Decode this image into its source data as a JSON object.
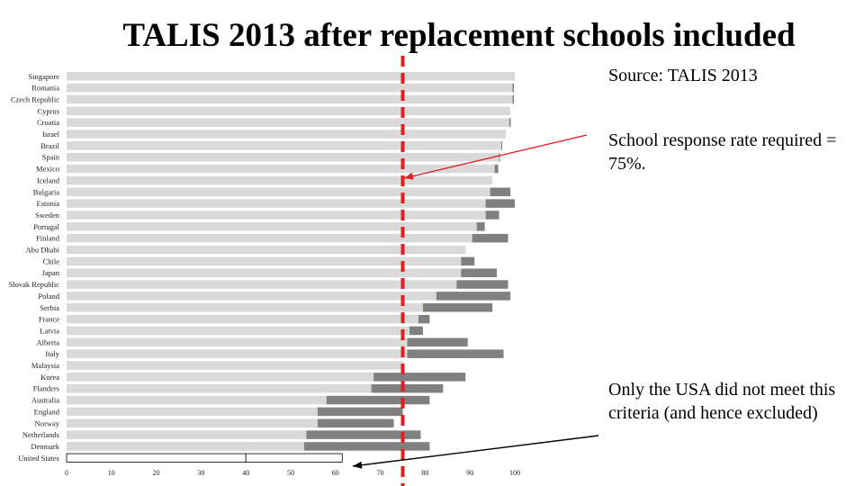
{
  "title": "TALIS 2013 after replacement schools included",
  "notes": {
    "source": "Source: TALIS 2013",
    "required": "School response rate required = 75%.",
    "usa": "Only the USA did not meet this criteria (and hence excluded)"
  },
  "colors": {
    "before_replacement": "#d9d9d9",
    "after_replacement": "#808080",
    "threshold": "#e02020",
    "arrow": "#e02020",
    "usa_arrow": "#000000"
  },
  "chart_data": {
    "type": "bar",
    "orientation": "horizontal",
    "stacked": true,
    "categories": [
      "Singapore",
      "Romania",
      "Czech Republic",
      "Cyprus",
      "Croatia",
      "Israel",
      "Brazil",
      "Spain",
      "Mexico",
      "Iceland",
      "Bulgaria",
      "Estonia",
      "Sweden",
      "Portugal",
      "Finland",
      "Abu Dhabi",
      "Chile",
      "Japan",
      "Slovak Republic",
      "Poland",
      "Serbia",
      "France",
      "Latvia",
      "Alberta",
      "Italy",
      "Malaysia",
      "Korea",
      "Flanders",
      "Australia",
      "England",
      "Norway",
      "Netherlands",
      "Denmark",
      "United States"
    ],
    "series": [
      {
        "values": [
          100,
          99.5,
          99.5,
          99,
          98.8,
          98,
          97,
          96.5,
          95.5,
          95,
          94.5,
          93.5,
          93.5,
          91.5,
          90.5,
          89,
          88,
          88,
          87,
          82.5,
          79.5,
          78.5,
          76.5,
          76,
          76,
          75,
          68.5,
          68,
          58,
          56,
          56,
          53.5,
          53,
          40
        ]
      },
      {
        "values": [
          0,
          0.3,
          0.3,
          0,
          0.3,
          0,
          0.2,
          0.2,
          0.8,
          0,
          4.5,
          6.5,
          3,
          1.8,
          8,
          0,
          3,
          8,
          11.5,
          16.5,
          15.5,
          2.5,
          3,
          13.5,
          21.5,
          0,
          20.5,
          16,
          23,
          19,
          17,
          25.5,
          28,
          21.5
        ]
      }
    ],
    "threshold": 75,
    "xlim": [
      0,
      100
    ],
    "xticks": [
      0,
      10,
      20,
      30,
      40,
      50,
      60,
      70,
      80,
      90,
      100
    ]
  }
}
